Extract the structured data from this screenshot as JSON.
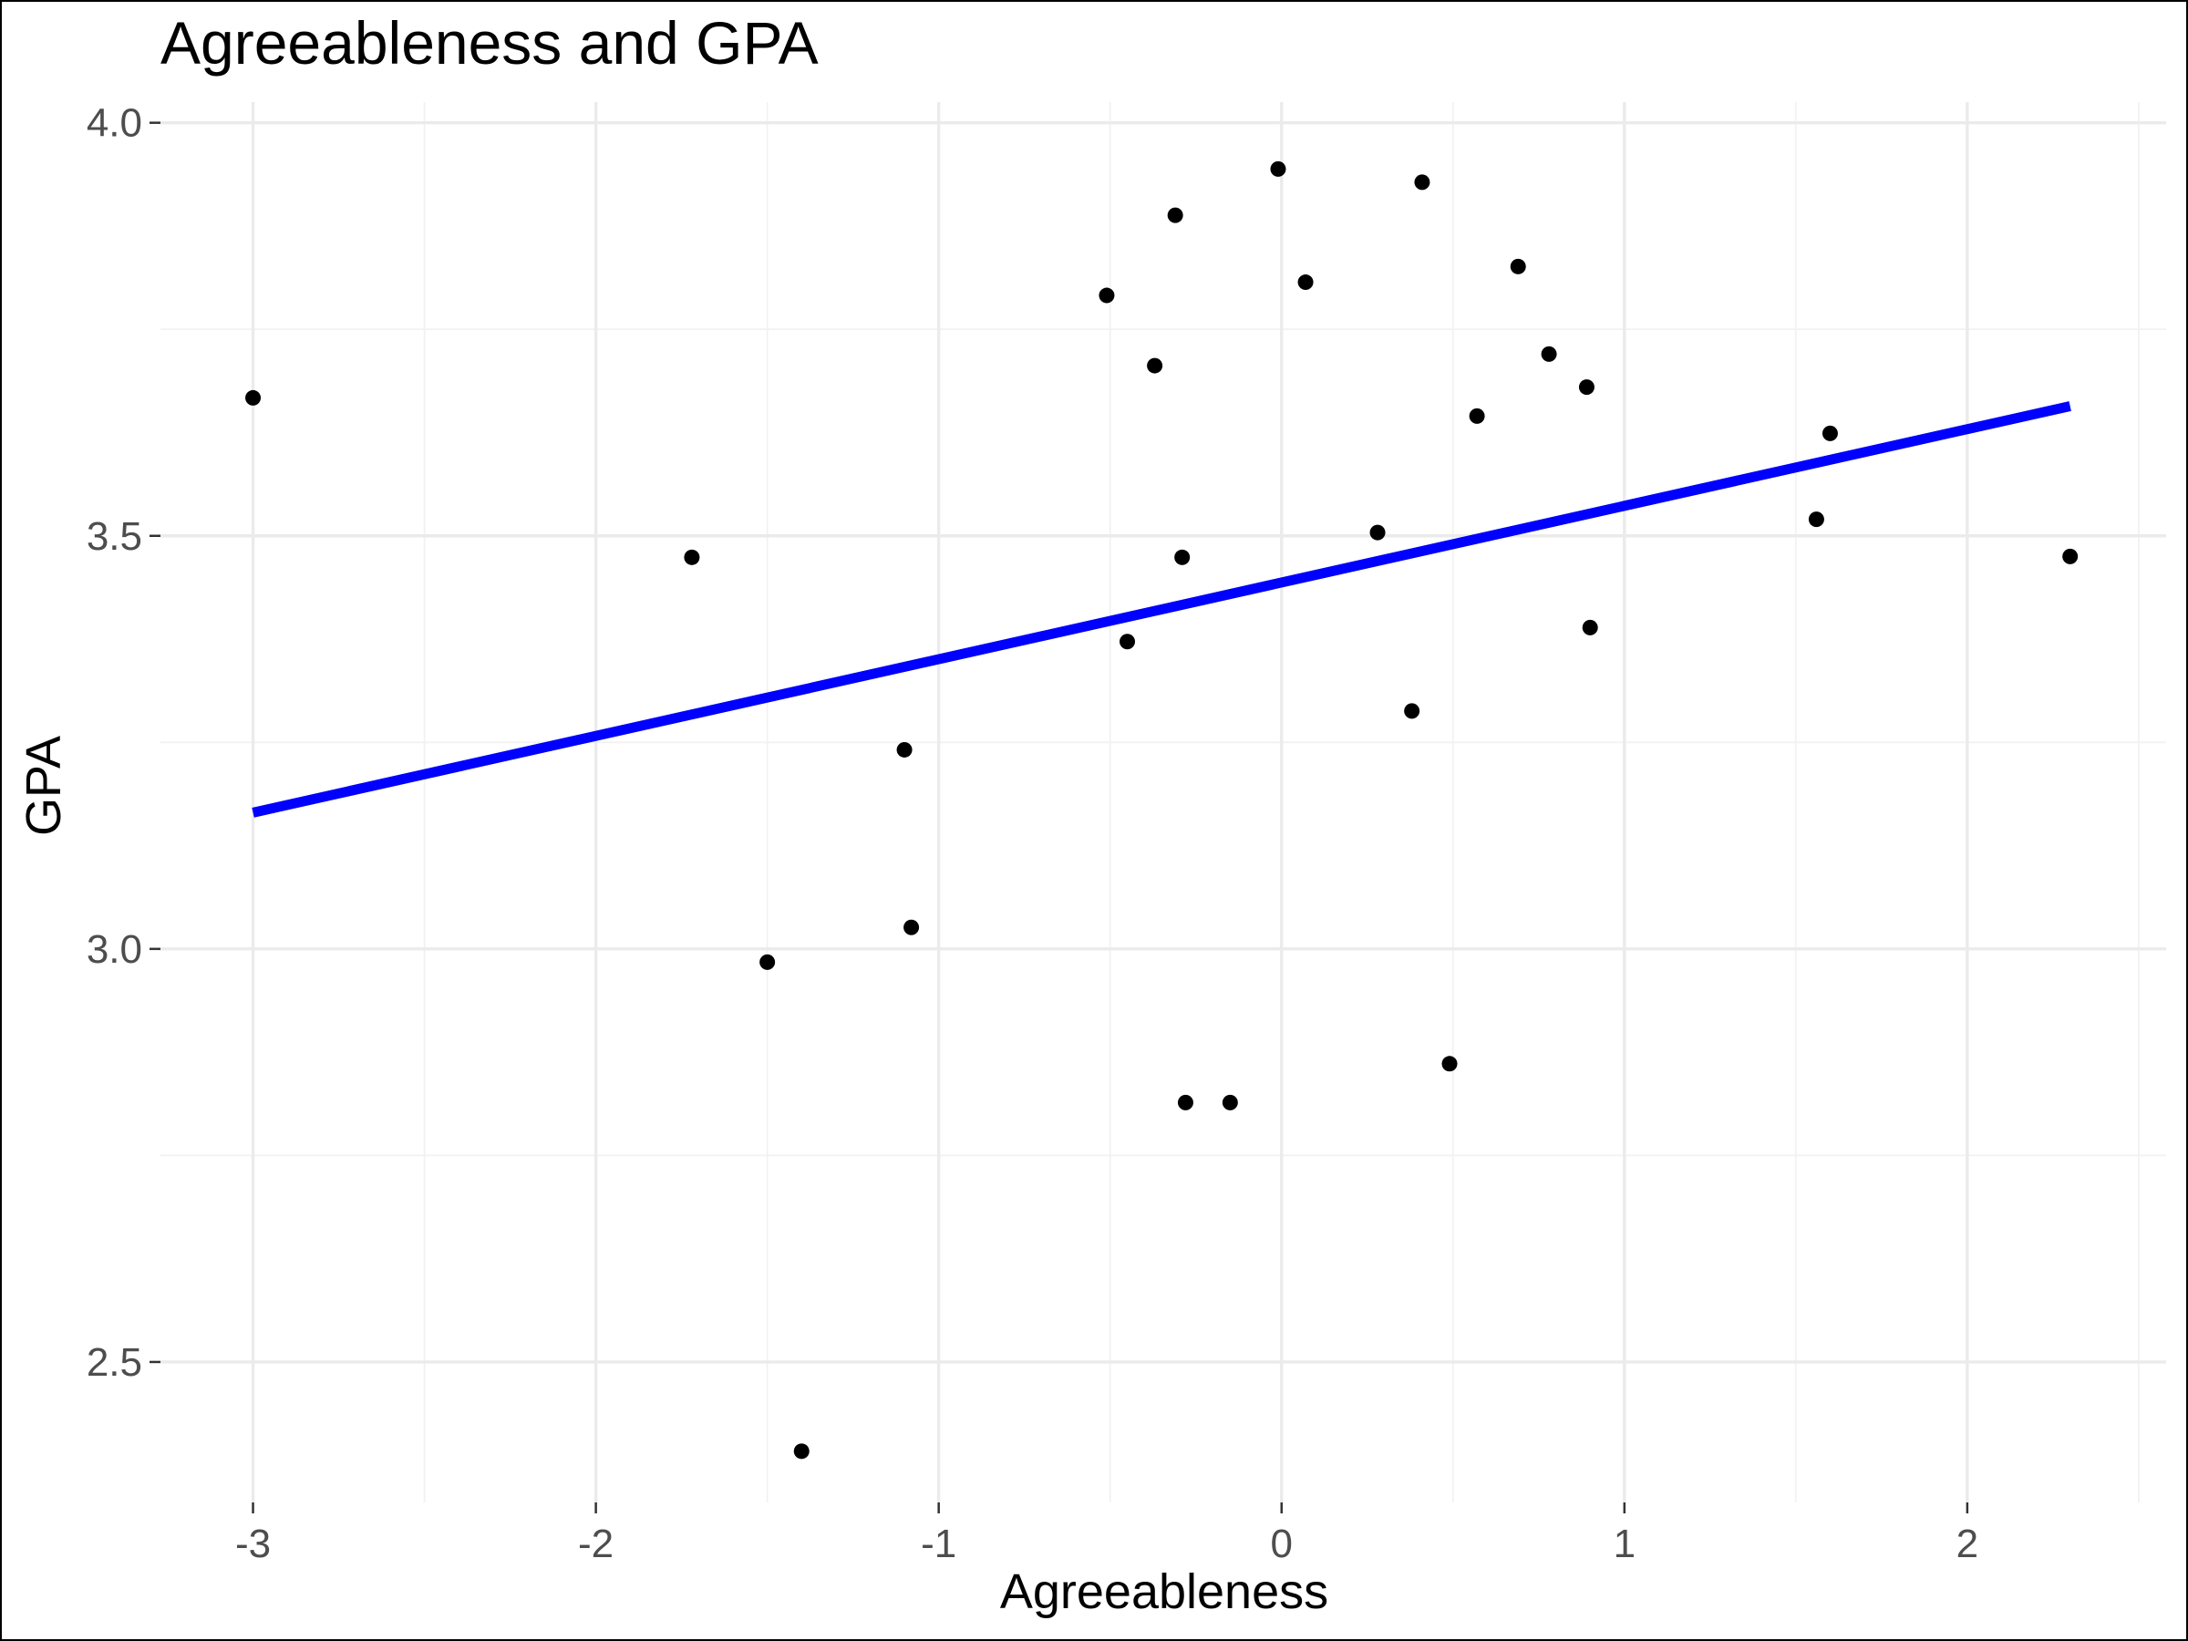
{
  "chart_data": {
    "type": "scatter",
    "title": "Agreeableness and GPA",
    "xlabel": "Agreeableness",
    "ylabel": "GPA",
    "xlim": [
      -3.27,
      2.58
    ],
    "ylim": [
      2.33,
      4.025
    ],
    "x_ticks": [
      -3,
      -2,
      -1,
      0,
      1,
      2
    ],
    "x_tick_labels": [
      "-3",
      "-2",
      "-1",
      "0",
      "1",
      "2"
    ],
    "y_ticks": [
      2.5,
      3.0,
      3.5,
      4.0
    ],
    "y_tick_labels": [
      "2.5",
      "3.0",
      "3.5",
      "4.0"
    ],
    "grid": true,
    "points": {
      "x": [
        -3.0,
        -1.72,
        -1.5,
        -1.4,
        -1.1,
        -1.08,
        -0.51,
        -0.45,
        -0.37,
        -0.31,
        -0.29,
        -0.28,
        -0.15,
        -0.01,
        0.07,
        0.28,
        0.38,
        0.41,
        0.49,
        0.57,
        0.69,
        0.78,
        0.89,
        0.9,
        1.56,
        1.6,
        2.3
      ],
      "y": [
        3.667,
        3.474,
        2.984,
        2.392,
        3.241,
        3.026,
        3.791,
        3.372,
        3.706,
        3.888,
        3.474,
        2.814,
        2.814,
        3.944,
        3.807,
        3.504,
        3.288,
        3.928,
        2.861,
        3.645,
        3.826,
        3.72,
        3.68,
        3.389,
        3.52,
        3.624,
        3.475
      ]
    },
    "fit_line": {
      "color": "#0000ff",
      "x": [
        -3.0,
        2.3
      ],
      "y": [
        3.165,
        3.657
      ]
    },
    "point_color": "#000000"
  }
}
